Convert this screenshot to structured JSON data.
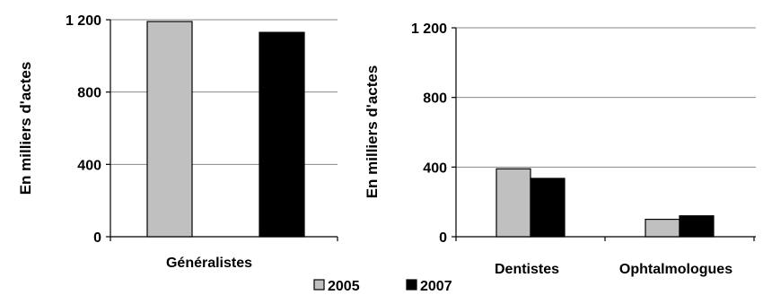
{
  "chart_data": [
    {
      "type": "bar",
      "ylabel": "En milliers d'actes",
      "categories": [
        "Généralistes"
      ],
      "series": [
        {
          "name": "2005",
          "values": [
            1190
          ]
        },
        {
          "name": "2007",
          "values": [
            1130
          ]
        }
      ],
      "ylim": [
        0,
        1200
      ],
      "yticks": [
        0,
        400,
        800,
        1200
      ],
      "ytick_labels": [
        "0",
        "400",
        "800",
        "1 200"
      ],
      "grid": true
    },
    {
      "type": "bar",
      "ylabel": "En milliers d'actes",
      "categories": [
        "Dentistes",
        "Ophtalmologues"
      ],
      "series": [
        {
          "name": "2005",
          "values": [
            390,
            100
          ]
        },
        {
          "name": "2007",
          "values": [
            335,
            120
          ]
        }
      ],
      "ylim": [
        0,
        1200
      ],
      "yticks": [
        0,
        400,
        800,
        1200
      ],
      "ytick_labels": [
        "0",
        "400",
        "800",
        "1 200"
      ],
      "grid": true
    }
  ],
  "legend": {
    "position": "bottom",
    "entries": [
      {
        "name": "2005",
        "color": "#c0c0c0"
      },
      {
        "name": "2007",
        "color": "#000000"
      }
    ]
  },
  "colors": {
    "2005": "#c0c0c0",
    "2007": "#000000",
    "grid": "#888888",
    "axis": "#000000"
  }
}
